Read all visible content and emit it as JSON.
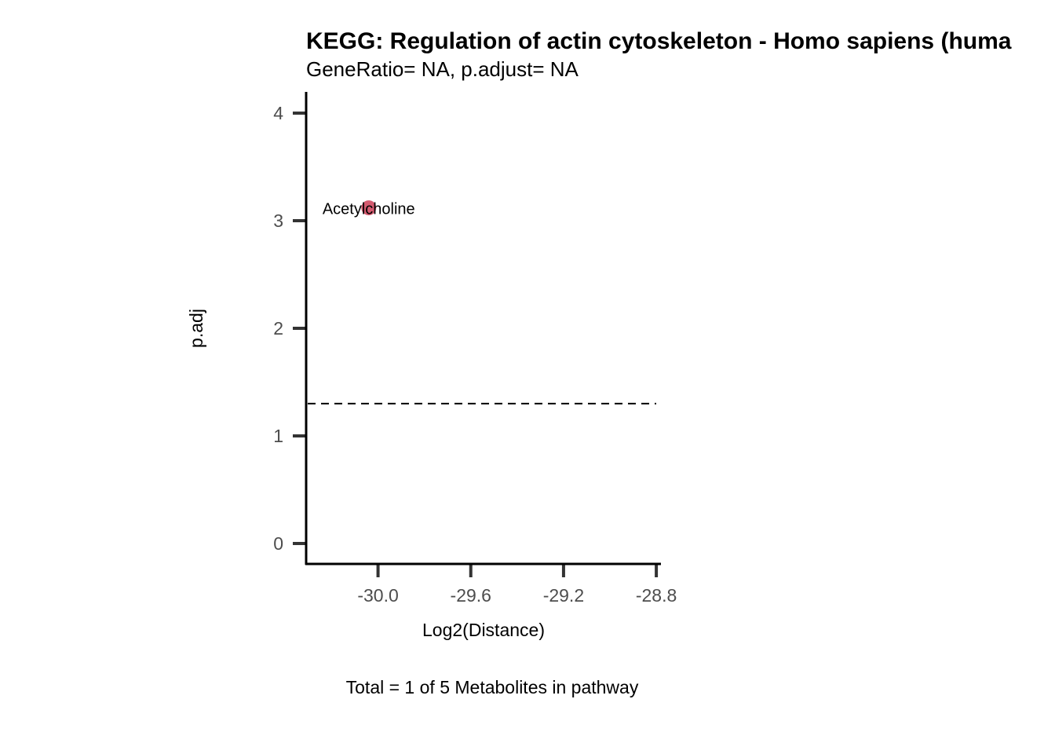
{
  "chart_data": {
    "type": "scatter",
    "title": "KEGG: Regulation of actin cytoskeleton - Homo sapiens (huma",
    "subtitle": "GeneRatio= NA, p.adjust= NA",
    "xlabel": "Log2(Distance)",
    "ylabel": "p.adj",
    "caption": "Total = 1 of 5 Metabolites in pathway",
    "xlim": [
      -30.31,
      -28.78
    ],
    "ylim": [
      -0.19,
      4.19
    ],
    "x_ticks": [
      -30.0,
      -29.6,
      -29.2,
      -28.8
    ],
    "x_tick_labels": [
      "-30.0",
      "-29.6",
      "-29.2",
      "-28.8"
    ],
    "y_ticks": [
      0,
      1,
      2,
      3,
      4
    ],
    "y_tick_labels": [
      "0",
      "1",
      "2",
      "3",
      "4"
    ],
    "threshold_line": {
      "y": 1.3,
      "style": "dashed"
    },
    "points": [
      {
        "label": "Acetylcholine",
        "x": -30.04,
        "y": 3.12,
        "color": "#d45a6f"
      }
    ],
    "grid": false,
    "legend": "none"
  }
}
